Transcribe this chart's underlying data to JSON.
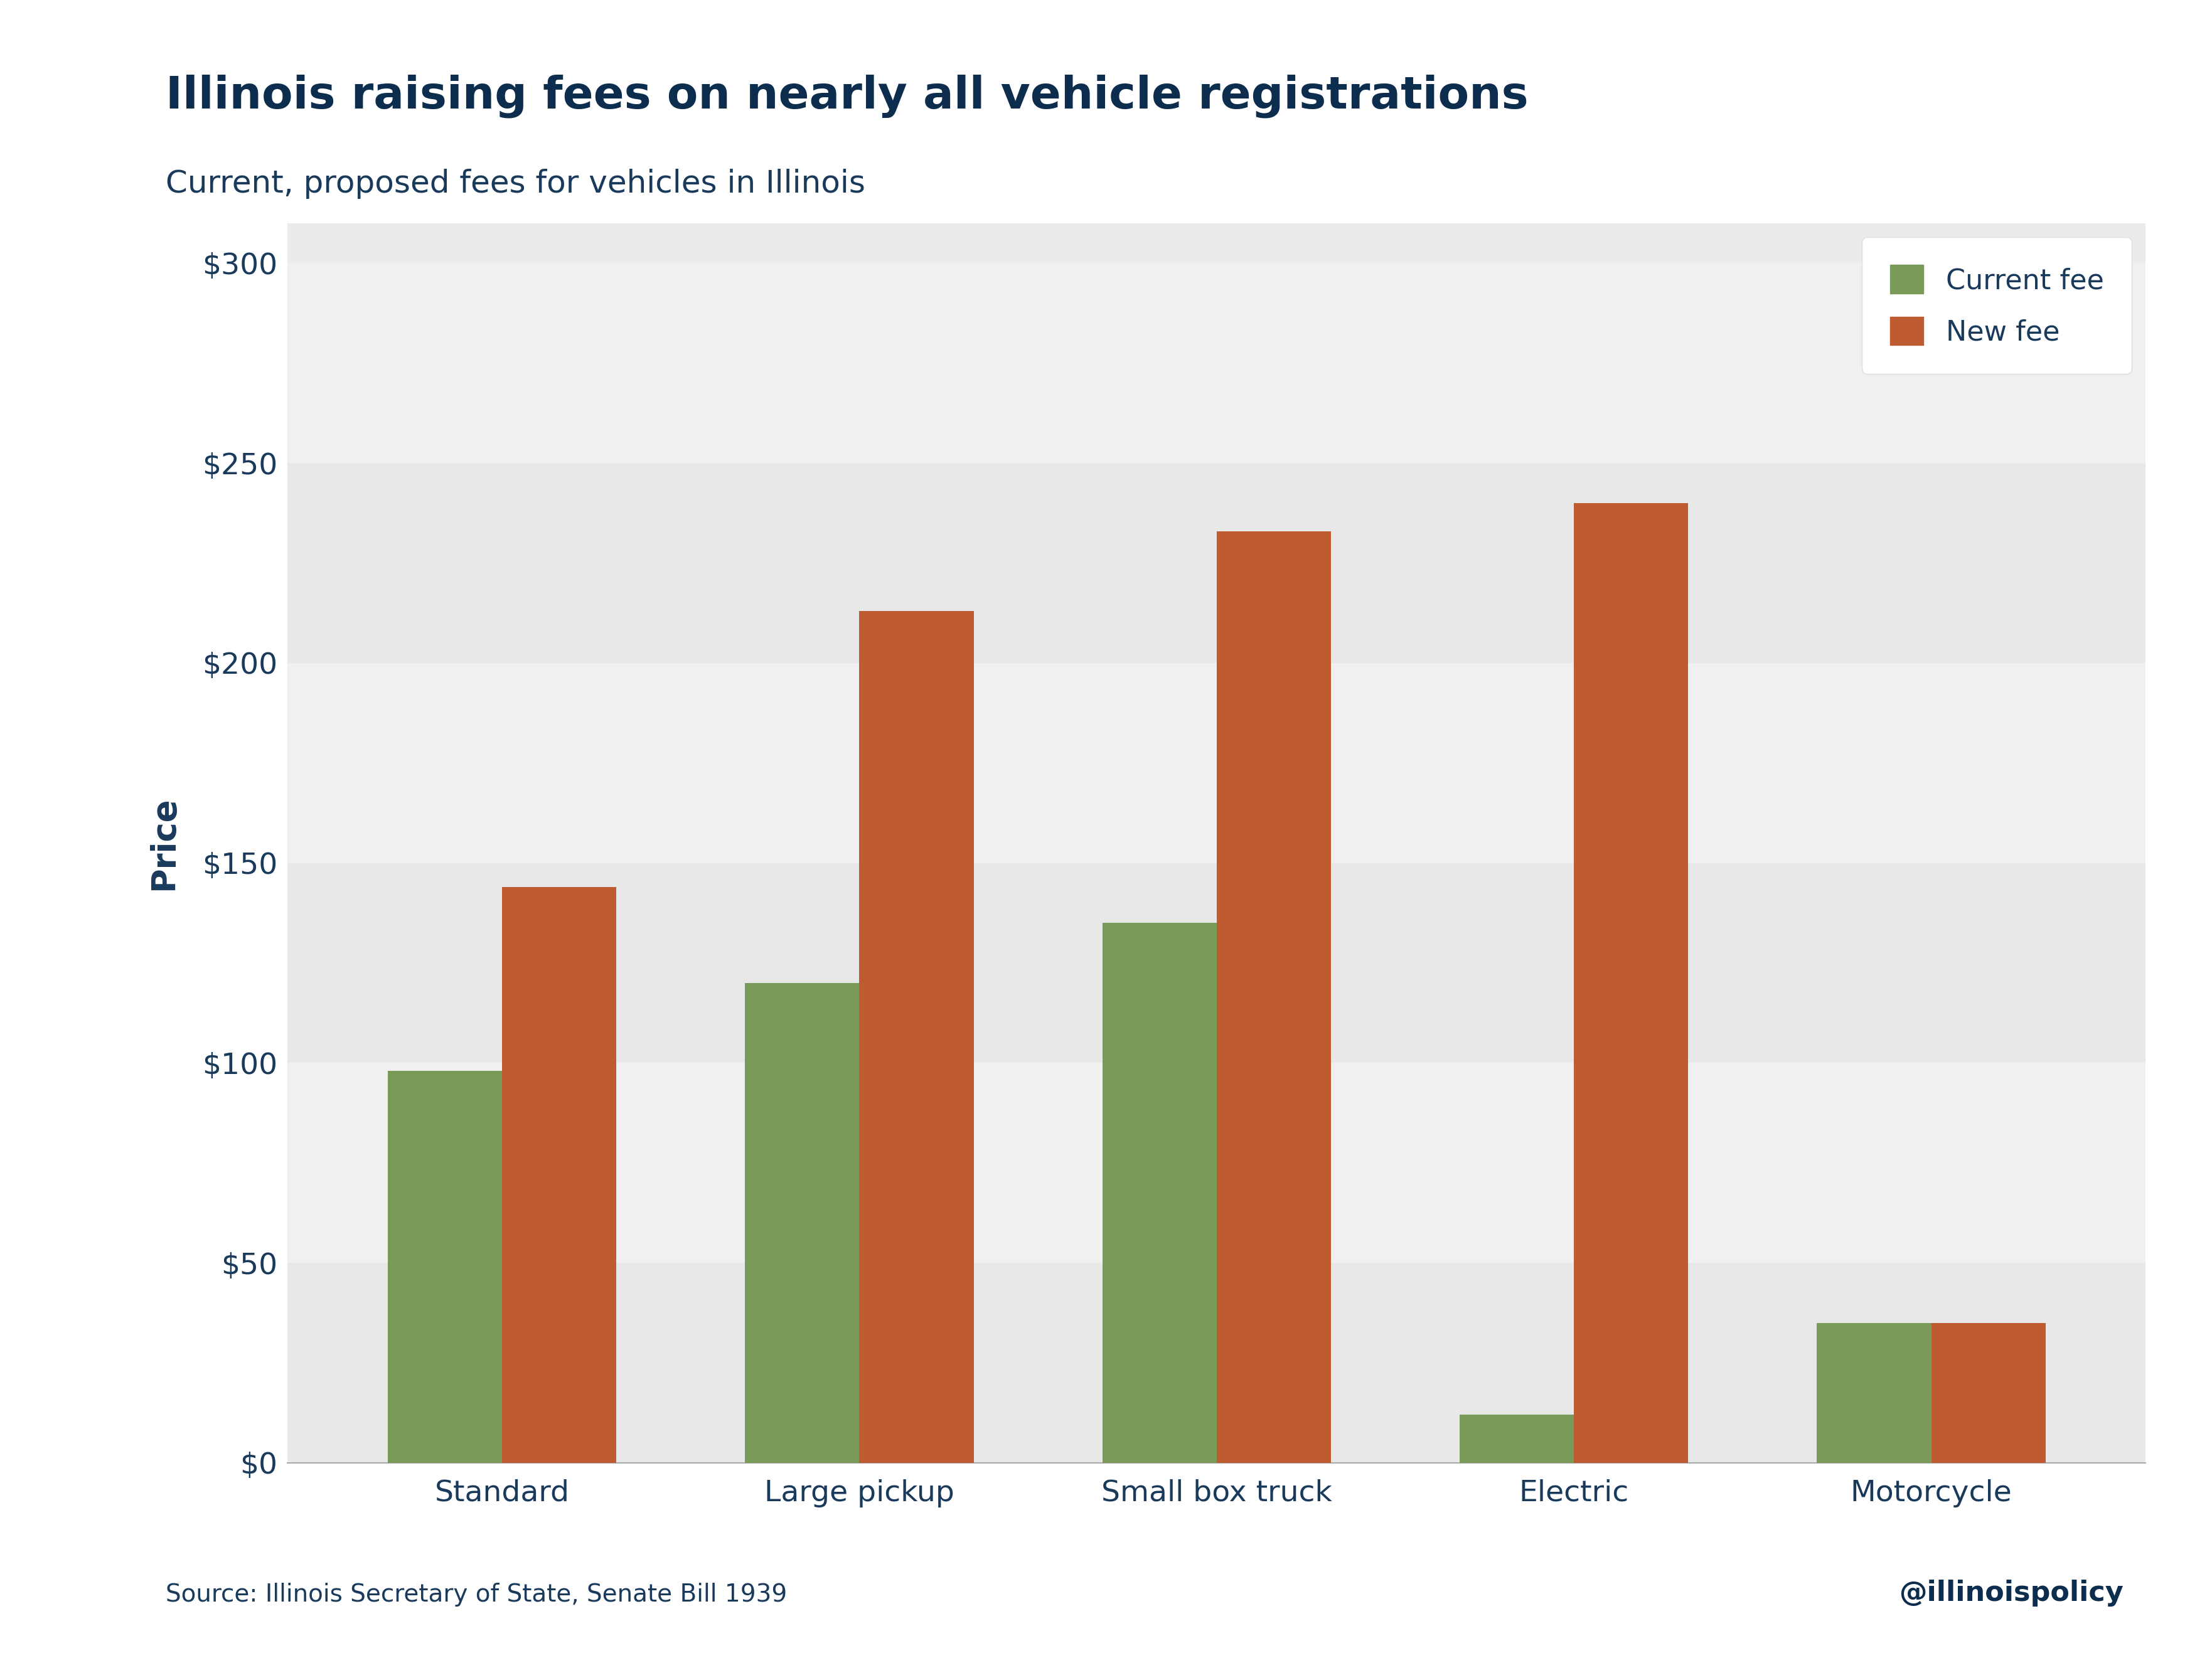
{
  "title": "Illinois raising fees on nearly all vehicle registrations",
  "subtitle": "Current, proposed fees for vehicles in Illinois",
  "categories": [
    "Standard",
    "Large pickup",
    "Small box truck",
    "Electric",
    "Motorcycle"
  ],
  "current_fees": [
    98,
    120,
    135,
    12,
    35
  ],
  "new_fees": [
    144,
    213,
    233,
    240,
    35
  ],
  "current_color": "#7a9a5a",
  "new_color": "#bf5b30",
  "ylabel": "Price",
  "yticks": [
    0,
    50,
    100,
    150,
    200,
    250,
    300
  ],
  "ytick_labels": [
    "$0",
    "$50",
    "$100",
    "$150",
    "$200",
    "$250",
    "$300"
  ],
  "ylim": [
    0,
    310
  ],
  "title_color": "#0d2d4e",
  "subtitle_color": "#1a3a5c",
  "text_color": "#1a3a5c",
  "bg_color": "#ffffff",
  "plot_bg_light": "#ebebeb",
  "plot_bg_dark": "#e0e0e0",
  "source_text": "Source: Illinois Secretary of State, Senate Bill 1939",
  "watermark_text": "@illinoispolicy",
  "legend_labels": [
    "Current fee",
    "New fee"
  ],
  "title_fontsize": 52,
  "subtitle_fontsize": 36,
  "axis_label_fontsize": 38,
  "tick_fontsize": 34,
  "legend_fontsize": 32,
  "source_fontsize": 28,
  "bar_width": 0.32,
  "band_colors": [
    "#e8e8e8",
    "#f0f0f0"
  ]
}
